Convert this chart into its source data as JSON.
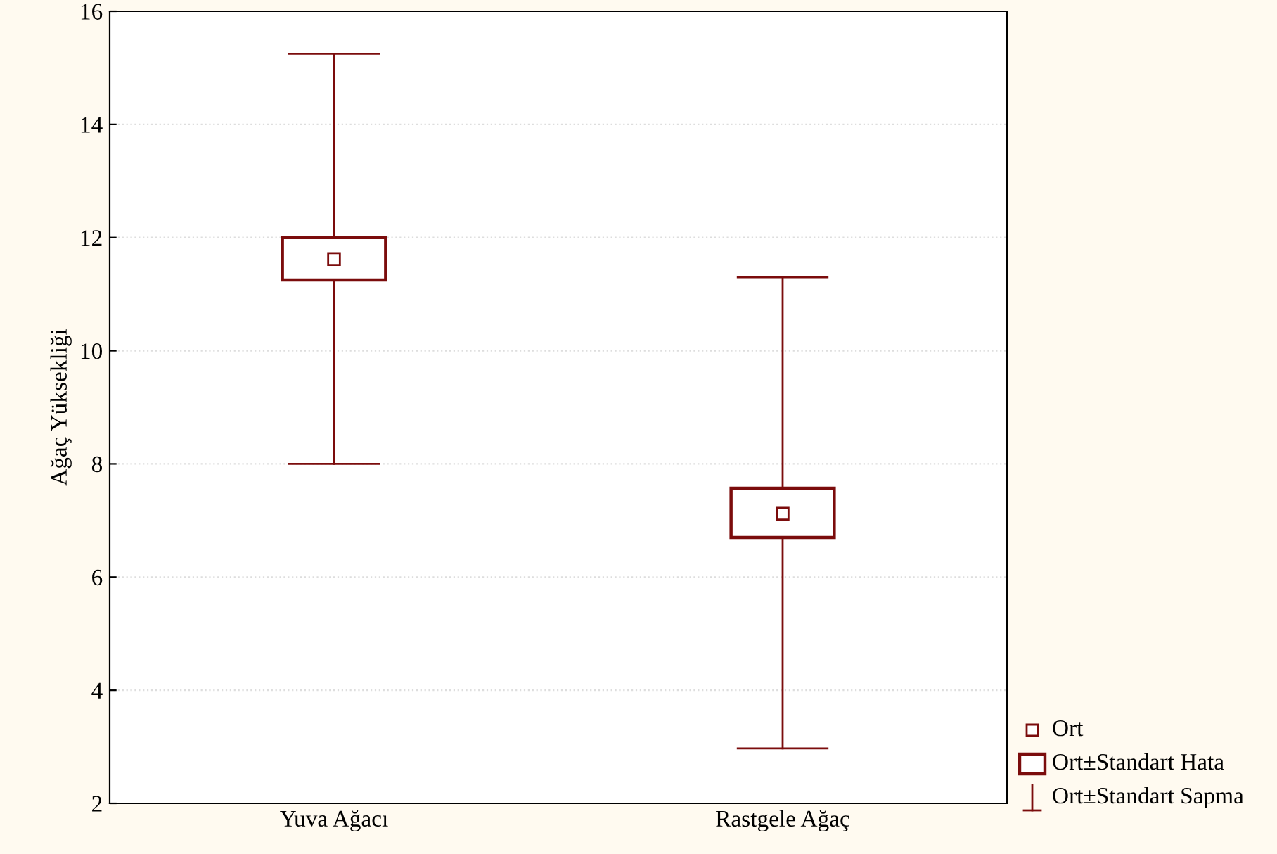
{
  "chart_data": {
    "type": "box",
    "ylabel": "Ağaç Yüksekliği",
    "categories": [
      "Yuva Ağacı",
      "Rastgele Ağaç"
    ],
    "color": "#7b0c0c",
    "boxes": [
      {
        "low": 8.0,
        "q1": 11.25,
        "q3": 12.0,
        "high": 15.25,
        "mean": 11.62
      },
      {
        "low": 2.97,
        "q1": 6.7,
        "q3": 7.57,
        "high": 11.3,
        "mean": 7.12
      }
    ],
    "annotations": [
      "Ort",
      "Ort±Standart Hata",
      "Ort±Standart Sapma"
    ],
    "ylim": [
      2,
      16
    ],
    "yticks": [
      2,
      4,
      6,
      8,
      10,
      12,
      14,
      16
    ],
    "grid": "y"
  }
}
